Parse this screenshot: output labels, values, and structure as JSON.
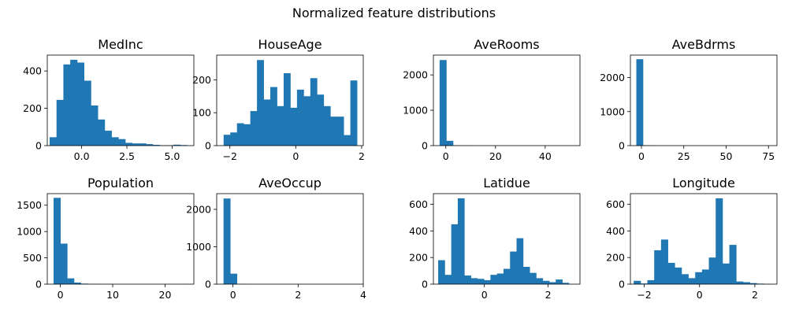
{
  "figure": {
    "title": "Normalized feature distributions"
  },
  "chart_data": [
    {
      "type": "bar",
      "title": "MedInc",
      "bin_start": -1.77,
      "bin_width": 0.38,
      "values": [
        45,
        245,
        435,
        460,
        445,
        348,
        215,
        140,
        80,
        45,
        35,
        15,
        12,
        12,
        8,
        4,
        2,
        2,
        5,
        3
      ],
      "xlim": [
        -1.9,
        6.2
      ],
      "ylim": [
        0,
        485
      ],
      "xticks": [
        0.0,
        2.5,
        5.0
      ],
      "xtick_labels": [
        "0.0",
        "2.5",
        "5.0"
      ],
      "yticks": [
        0,
        200,
        400
      ],
      "ytick_labels": [
        "0",
        "200",
        "400"
      ]
    },
    {
      "type": "bar",
      "title": "HouseAge",
      "bin_start": -2.19,
      "bin_width": 0.2025,
      "values": [
        33,
        40,
        68,
        65,
        105,
        260,
        140,
        178,
        120,
        220,
        115,
        170,
        150,
        205,
        155,
        120,
        88,
        88,
        32,
        198
      ],
      "xlim": [
        -2.4,
        2.05
      ],
      "ylim": [
        0,
        275
      ],
      "xticks": [
        -2,
        0,
        2
      ],
      "xtick_labels": [
        "−2",
        "0",
        "2"
      ],
      "yticks": [
        0,
        100,
        200
      ],
      "ytick_labels": [
        "0",
        "100",
        "200"
      ]
    },
    {
      "type": "bar",
      "title": "AveRooms",
      "bin_start": -2.5,
      "bin_width": 2.7,
      "values": [
        2420,
        135,
        8,
        3,
        2,
        0,
        0,
        0,
        0,
        0,
        0,
        0,
        0,
        0,
        0,
        0,
        0,
        0,
        0,
        1
      ],
      "xlim": [
        -5.0,
        54.0
      ],
      "ylim": [
        0,
        2560
      ],
      "xticks": [
        0,
        20,
        40
      ],
      "xtick_labels": [
        "0",
        "20",
        "40"
      ],
      "yticks": [
        0,
        1000,
        2000
      ],
      "ytick_labels": [
        "0",
        "1000",
        "2000"
      ]
    },
    {
      "type": "bar",
      "title": "AveBdrms",
      "bin_start": -3.0,
      "bin_width": 3.9,
      "values": [
        2540,
        10,
        2,
        1,
        0,
        0,
        0,
        0,
        0,
        0,
        0,
        0,
        0,
        0,
        0,
        0,
        0,
        0,
        0,
        1
      ],
      "xlim": [
        -6.5,
        80.0
      ],
      "ylim": [
        0,
        2660
      ],
      "xticks": [
        0,
        25,
        50,
        75
      ],
      "xtick_labels": [
        "0",
        "25",
        "50",
        "75"
      ],
      "yticks": [
        0,
        1000,
        2000
      ],
      "ytick_labels": [
        "0",
        "1000",
        "2000"
      ]
    },
    {
      "type": "bar",
      "title": "Population",
      "bin_start": -1.3,
      "bin_width": 1.3,
      "values": [
        1640,
        770,
        110,
        30,
        10,
        4,
        2,
        1,
        1,
        0,
        0,
        0,
        0,
        0,
        0,
        0,
        0,
        0,
        0,
        1
      ],
      "xlim": [
        -2.5,
        25.5
      ],
      "ylim": [
        0,
        1720
      ],
      "xticks": [
        0,
        10,
        20
      ],
      "xtick_labels": [
        "0",
        "10",
        "20"
      ],
      "yticks": [
        0,
        500,
        1000,
        1500
      ],
      "ytick_labels": [
        "0",
        "500",
        "1000",
        "1500"
      ]
    },
    {
      "type": "bar",
      "title": "AveOccup",
      "bin_start": -0.29,
      "bin_width": 0.205,
      "values": [
        2290,
        280,
        5,
        2,
        0,
        0,
        0,
        0,
        0,
        0,
        0,
        0,
        0,
        0,
        0,
        0,
        0,
        0,
        0,
        1
      ],
      "xlim": [
        -0.5,
        4.0
      ],
      "ylim": [
        0,
        2420
      ],
      "xticks": [
        0,
        2,
        4
      ],
      "xtick_labels": [
        "0",
        "2",
        "4"
      ],
      "yticks": [
        0,
        1000,
        2000
      ],
      "ytick_labels": [
        "0",
        "1000",
        "2000"
      ]
    },
    {
      "type": "bar",
      "title": "Latidue",
      "bin_start": -1.45,
      "bin_width": 0.205,
      "values": [
        180,
        70,
        450,
        645,
        65,
        45,
        40,
        30,
        70,
        80,
        115,
        245,
        345,
        130,
        85,
        45,
        25,
        15,
        35,
        10
      ],
      "xlim": [
        -1.6,
        3.0
      ],
      "ylim": [
        0,
        680
      ],
      "xticks": [
        0,
        2
      ],
      "xtick_labels": [
        "0",
        "2"
      ],
      "yticks": [
        0,
        200,
        400,
        600
      ],
      "ytick_labels": [
        "0",
        "200",
        "400",
        "600"
      ]
    },
    {
      "type": "bar",
      "title": "Longitude",
      "bin_start": -2.38,
      "bin_width": 0.247,
      "values": [
        25,
        5,
        30,
        255,
        335,
        160,
        125,
        75,
        45,
        90,
        110,
        200,
        645,
        155,
        295,
        20,
        15,
        8,
        4,
        2
      ],
      "xlim": [
        -2.5,
        2.8
      ],
      "ylim": [
        0,
        680
      ],
      "xticks": [
        -2,
        0,
        2
      ],
      "xtick_labels": [
        "−2",
        "0",
        "2"
      ],
      "yticks": [
        0,
        200,
        400,
        600
      ],
      "ytick_labels": [
        "0",
        "200",
        "400",
        "600"
      ]
    }
  ]
}
